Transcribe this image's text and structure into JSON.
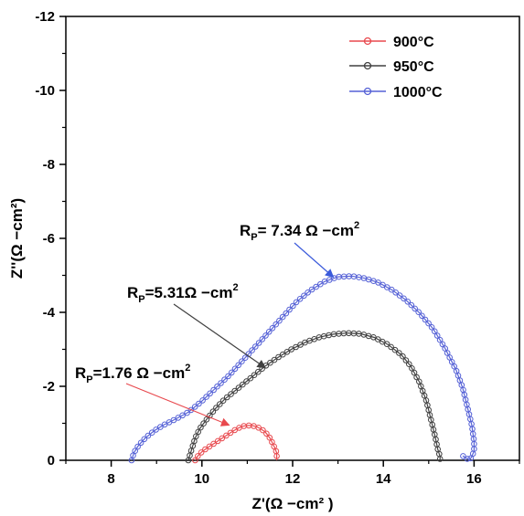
{
  "chart_data": {
    "type": "line",
    "title": "",
    "xlabel": "Z'(Ω −cm² )",
    "ylabel": "Z''(Ω −cm²)",
    "xlim": [
      7,
      17
    ],
    "ylim": [
      0,
      -12
    ],
    "x_ticks": [
      8,
      10,
      12,
      14,
      16
    ],
    "y_ticks": [
      0,
      -2,
      -4,
      -6,
      -8,
      -10,
      -12
    ],
    "grid": false,
    "legend_position": "top-right",
    "series": [
      {
        "name": "900°C",
        "color": "#e8494e",
        "marker": "open-circle",
        "x": [
          9.85,
          9.9,
          9.95,
          10.0,
          10.1,
          10.2,
          10.3,
          10.4,
          10.5,
          10.6,
          10.7,
          10.8,
          10.9,
          11.0,
          11.1,
          11.2,
          11.3,
          11.4,
          11.5,
          11.55,
          11.6,
          11.65,
          11.65
        ],
        "y": [
          0.0,
          -0.1,
          -0.17,
          -0.23,
          -0.32,
          -0.4,
          -0.48,
          -0.56,
          -0.64,
          -0.72,
          -0.8,
          -0.87,
          -0.92,
          -0.94,
          -0.94,
          -0.91,
          -0.85,
          -0.76,
          -0.6,
          -0.48,
          -0.35,
          -0.2,
          0.0
        ]
      },
      {
        "name": "950°C",
        "color": "#404040",
        "marker": "open-circle",
        "x": [
          9.7,
          9.75,
          9.8,
          9.85,
          9.95,
          10.1,
          10.3,
          10.5,
          10.8,
          11.1,
          11.4,
          11.7,
          12.0,
          12.3,
          12.6,
          12.9,
          13.2,
          13.5,
          13.8,
          14.1,
          14.4,
          14.6,
          14.8,
          14.95,
          15.05,
          15.15,
          15.2,
          15.25,
          15.25
        ],
        "y": [
          0.0,
          -0.2,
          -0.4,
          -0.6,
          -0.85,
          -1.1,
          -1.4,
          -1.65,
          -1.95,
          -2.25,
          -2.55,
          -2.8,
          -3.02,
          -3.2,
          -3.33,
          -3.41,
          -3.44,
          -3.42,
          -3.32,
          -3.13,
          -2.85,
          -2.55,
          -2.1,
          -1.6,
          -1.1,
          -0.6,
          -0.3,
          -0.1,
          0.0
        ]
      },
      {
        "name": "1000°C",
        "color": "#5561d6",
        "marker": "open-circle",
        "x": [
          8.45,
          8.5,
          8.6,
          8.75,
          8.95,
          9.15,
          9.4,
          9.7,
          10.0,
          10.3,
          10.6,
          10.9,
          11.2,
          11.5,
          11.8,
          12.1,
          12.4,
          12.7,
          13.0,
          13.3,
          13.6,
          13.9,
          14.2,
          14.5,
          14.8,
          15.1,
          15.35,
          15.6,
          15.75,
          15.85,
          15.95,
          16.0,
          16.0,
          15.95,
          15.9,
          15.75
        ],
        "y": [
          0.0,
          -0.2,
          -0.4,
          -0.6,
          -0.8,
          -0.95,
          -1.1,
          -1.3,
          -1.6,
          -1.95,
          -2.3,
          -2.7,
          -3.1,
          -3.5,
          -3.9,
          -4.3,
          -4.6,
          -4.83,
          -4.96,
          -4.98,
          -4.92,
          -4.8,
          -4.6,
          -4.33,
          -3.98,
          -3.55,
          -3.05,
          -2.45,
          -1.95,
          -1.45,
          -0.95,
          -0.5,
          -0.25,
          -0.1,
          0.0,
          -0.12
        ]
      }
    ],
    "annotations": [
      {
        "label": "P",
        "text": "=1.76 Ω −cm",
        "sup": "2",
        "arrow_to": [
          10.6,
          -0.95
        ],
        "color": "#e8494e"
      },
      {
        "label": "P",
        "text": "=5.31Ω −cm",
        "sup": "2",
        "arrow_to": [
          11.4,
          -2.5
        ],
        "color": "#404040"
      },
      {
        "label": "P",
        "text": "= 7.34 Ω −cm",
        "sup": "2",
        "arrow_to": [
          12.9,
          -4.95
        ],
        "color": "#3b5bdb"
      }
    ]
  }
}
